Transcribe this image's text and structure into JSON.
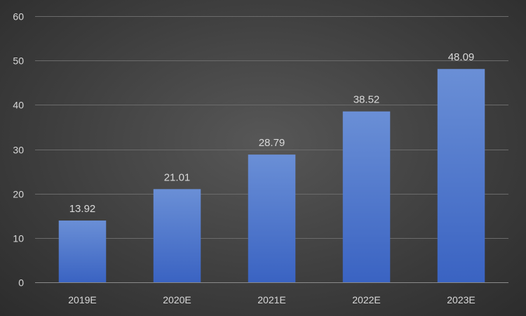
{
  "chart_data": {
    "type": "bar",
    "title": "",
    "xlabel": "",
    "ylabel": "",
    "categories": [
      "2019E",
      "2020E",
      "2021E",
      "2022E",
      "2023E"
    ],
    "values": [
      13.92,
      21.01,
      28.79,
      38.52,
      48.09
    ],
    "value_labels": [
      "13.92",
      "21.01",
      "28.79",
      "38.52",
      "48.09"
    ],
    "ylim": [
      0,
      60
    ],
    "yticks": [
      0,
      10,
      20,
      30,
      40,
      50,
      60
    ],
    "ytick_labels": [
      "0",
      "10",
      "20",
      "30",
      "40",
      "50",
      "60"
    ],
    "grid": true,
    "legend": "none",
    "colors": {
      "bar_top": "#6a8fd6",
      "bar_bottom": "#3a63c2",
      "background": "#444444",
      "gridline": "#6b6b6b",
      "text": "#d9d9d9"
    }
  }
}
